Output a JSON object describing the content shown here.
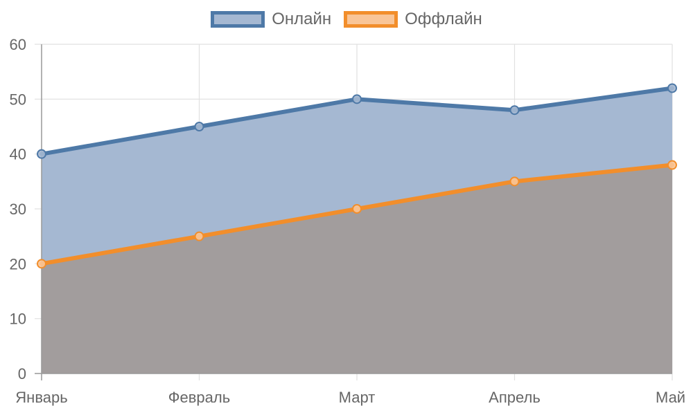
{
  "chart_data": {
    "type": "area",
    "categories": [
      "Январь",
      "Февраль",
      "Март",
      "Апрель",
      "Май"
    ],
    "series": [
      {
        "name": "Онлайн",
        "values": [
          40,
          45,
          50,
          48,
          52
        ],
        "line_color": "#4e79a7",
        "fill_color": "#a5b8d2"
      },
      {
        "name": "Оффлайн",
        "values": [
          20,
          25,
          30,
          35,
          38
        ],
        "line_color": "#f28e2b",
        "fill_color": "#f9c597"
      }
    ],
    "ylim": [
      0,
      60
    ],
    "yticks": [
      "0",
      "10",
      "20",
      "30",
      "40",
      "50",
      "60"
    ],
    "grid": true,
    "legend": "top-center",
    "offline_fill_rendered": "#a29d9d"
  }
}
